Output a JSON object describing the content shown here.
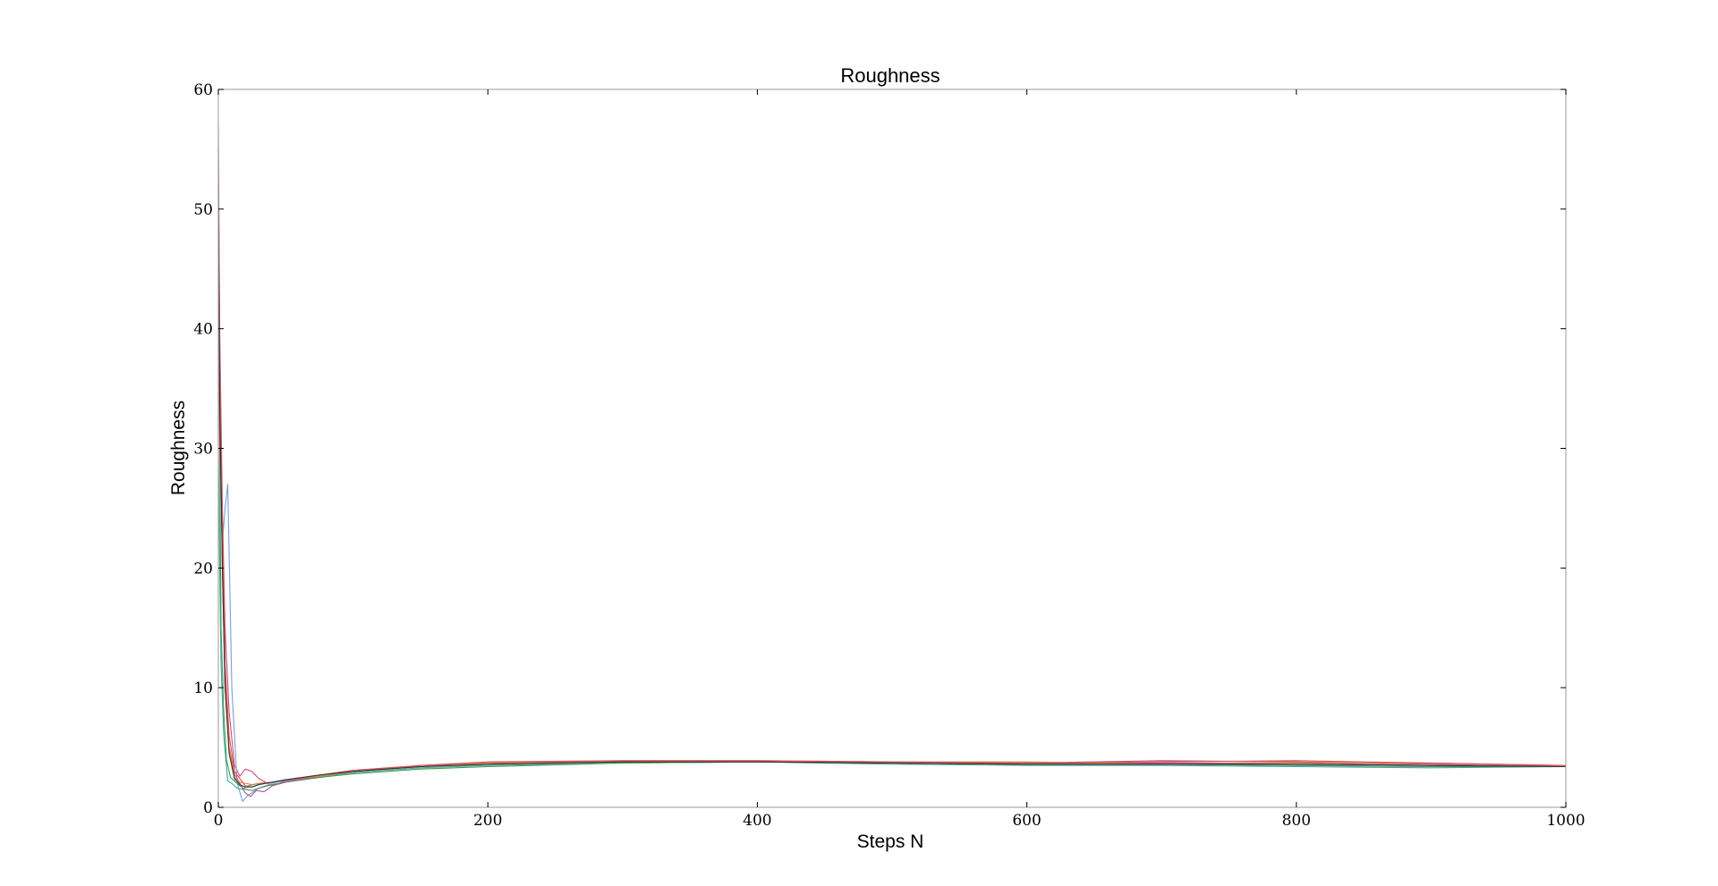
{
  "chart_data": {
    "type": "line",
    "title": "Roughness",
    "xlabel": "Steps N",
    "ylabel": "Roughness",
    "xlim": [
      0,
      1000
    ],
    "ylim": [
      0,
      60
    ],
    "xticks": [
      0,
      200,
      400,
      600,
      800,
      1000
    ],
    "xtick_labels": [
      "0",
      "200",
      "400",
      "600",
      "800",
      "1000"
    ],
    "yticks": [
      0,
      10,
      20,
      30,
      40,
      50,
      60
    ],
    "ytick_labels": [
      "0",
      "10",
      "20",
      "30",
      "40",
      "50",
      "60"
    ],
    "grid": false,
    "legend": "none",
    "series": [
      {
        "color": "#c8507a",
        "x": [
          0,
          1,
          3,
          5,
          8,
          12,
          16,
          20,
          25,
          30,
          40,
          50,
          75,
          100,
          150,
          200,
          300,
          400,
          500,
          600,
          700,
          800,
          900,
          1000
        ],
        "y": [
          57,
          40,
          25,
          15,
          8,
          3.5,
          2.6,
          3.2,
          3.0,
          2.4,
          1.8,
          2.2,
          2.6,
          3.0,
          3.5,
          3.7,
          3.8,
          3.8,
          3.7,
          3.7,
          3.9,
          3.8,
          3.6,
          3.4
        ]
      },
      {
        "color": "#7a9fd6",
        "x": [
          0,
          1,
          3,
          5,
          7,
          10,
          14,
          18,
          22,
          30,
          40,
          50,
          75,
          100,
          150,
          200,
          300,
          400,
          500,
          600,
          700,
          800,
          900,
          1000
        ],
        "y": [
          50,
          35,
          22,
          25,
          27,
          10,
          2.0,
          0.5,
          1.0,
          1.6,
          2.0,
          2.3,
          2.7,
          3.0,
          3.4,
          3.6,
          3.8,
          3.8,
          3.7,
          3.6,
          3.6,
          3.5,
          3.4,
          3.4
        ]
      },
      {
        "color": "#4aa7a0",
        "x": [
          0,
          1,
          2,
          4,
          7,
          10,
          14,
          18,
          22,
          30,
          40,
          50,
          75,
          100,
          150,
          200,
          300,
          400,
          500,
          600,
          700,
          800,
          900,
          1000
        ],
        "y": [
          30,
          20,
          12,
          6,
          2.2,
          2.0,
          1.6,
          1.5,
          1.8,
          2.0,
          2.1,
          2.2,
          2.5,
          2.9,
          3.3,
          3.5,
          3.7,
          3.8,
          3.6,
          3.5,
          3.5,
          3.4,
          3.3,
          3.4
        ]
      },
      {
        "color": "#3f9a55",
        "x": [
          0,
          1,
          2,
          4,
          6,
          9,
          12,
          16,
          20,
          25,
          30,
          40,
          50,
          75,
          100,
          150,
          200,
          300,
          400,
          500,
          600,
          700,
          800,
          900,
          1000
        ],
        "y": [
          45,
          30,
          15,
          8,
          4,
          2.5,
          2.2,
          1.8,
          1.5,
          1.4,
          1.6,
          1.9,
          2.1,
          2.5,
          2.8,
          3.2,
          3.4,
          3.7,
          3.8,
          3.7,
          3.6,
          3.6,
          3.5,
          3.4,
          3.4
        ]
      },
      {
        "color": "#b44f9c",
        "x": [
          0,
          1,
          3,
          5,
          8,
          12,
          16,
          20,
          24,
          28,
          34,
          40,
          50,
          75,
          100,
          150,
          200,
          300,
          400,
          500,
          600,
          700,
          800,
          900,
          1000
        ],
        "y": [
          55,
          38,
          20,
          10,
          5,
          2.8,
          2.0,
          1.2,
          0.9,
          1.4,
          1.3,
          1.8,
          2.1,
          2.6,
          3.0,
          3.4,
          3.7,
          3.8,
          3.8,
          3.7,
          3.7,
          3.7,
          3.7,
          3.5,
          3.5
        ]
      },
      {
        "color": "#d9823a",
        "x": [
          0,
          1,
          3,
          5,
          8,
          12,
          16,
          20,
          25,
          30,
          40,
          50,
          75,
          100,
          150,
          200,
          300,
          400,
          500,
          600,
          700,
          800,
          900,
          1000
        ],
        "y": [
          52,
          36,
          20,
          11,
          5,
          2.5,
          2.1,
          2.0,
          1.9,
          2.0,
          2.1,
          2.3,
          2.6,
          3.0,
          3.4,
          3.7,
          3.9,
          3.9,
          3.8,
          3.8,
          3.6,
          3.7,
          3.7,
          3.5
        ]
      },
      {
        "color": "#d9534f",
        "x": [
          0,
          1,
          3,
          5,
          8,
          12,
          16,
          20,
          25,
          30,
          40,
          50,
          75,
          100,
          150,
          200,
          300,
          400,
          500,
          600,
          700,
          800,
          900,
          1000
        ],
        "y": [
          48,
          30,
          24,
          12,
          6,
          3.0,
          2.4,
          1.8,
          1.7,
          1.9,
          2.1,
          2.3,
          2.7,
          3.1,
          3.5,
          3.8,
          3.9,
          3.9,
          3.8,
          3.7,
          3.8,
          3.9,
          3.7,
          3.5
        ]
      },
      {
        "color": "#333333",
        "x": [
          0,
          1,
          3,
          5,
          8,
          12,
          16,
          20,
          25,
          30,
          40,
          50,
          75,
          100,
          150,
          200,
          300,
          400,
          500,
          600,
          700,
          800,
          900,
          1000
        ],
        "y": [
          52,
          34,
          20,
          10,
          4.5,
          2.4,
          1.9,
          1.7,
          1.7,
          1.9,
          2.1,
          2.3,
          2.7,
          3.0,
          3.4,
          3.6,
          3.8,
          3.8,
          3.7,
          3.6,
          3.6,
          3.6,
          3.5,
          3.4
        ]
      }
    ]
  }
}
